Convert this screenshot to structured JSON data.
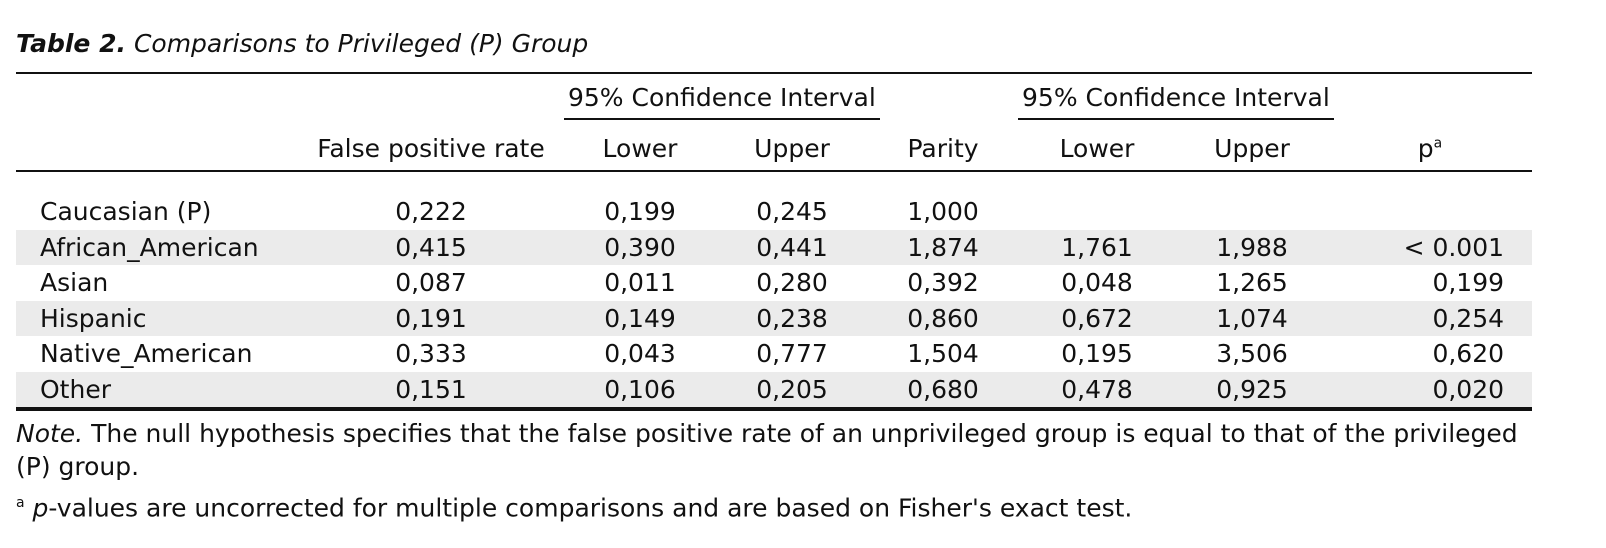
{
  "caption": {
    "label": "Table 2.",
    "title": "Comparisons to Privileged (P) Group"
  },
  "header": {
    "ci_label_1": "95% Confidence Interval",
    "ci_label_2": "95% Confidence Interval",
    "columns": [
      "False positive rate",
      "Lower",
      "Upper",
      "Parity",
      "Lower",
      "Upper",
      "p"
    ],
    "p_superscript": "a"
  },
  "rows": [
    {
      "group": "Caucasian (P)",
      "fpr": "0,222",
      "lower1": "0,199",
      "upper1": "0,245",
      "parity": "1,000",
      "lower2": "",
      "upper2": "",
      "p": ""
    },
    {
      "group": "African_American",
      "fpr": "0,415",
      "lower1": "0,390",
      "upper1": "0,441",
      "parity": "1,874",
      "lower2": "1,761",
      "upper2": "1,988",
      "p": "< 0.001"
    },
    {
      "group": "Asian",
      "fpr": "0,087",
      "lower1": "0,011",
      "upper1": "0,280",
      "parity": "0,392",
      "lower2": "0,048",
      "upper2": "1,265",
      "p": "0,199"
    },
    {
      "group": "Hispanic",
      "fpr": "0,191",
      "lower1": "0,149",
      "upper1": "0,238",
      "parity": "0,860",
      "lower2": "0,672",
      "upper2": "1,074",
      "p": "0,254"
    },
    {
      "group": "Native_American",
      "fpr": "0,333",
      "lower1": "0,043",
      "upper1": "0,777",
      "parity": "1,504",
      "lower2": "0,195",
      "upper2": "3,506",
      "p": "0,620"
    },
    {
      "group": "Other",
      "fpr": "0,151",
      "lower1": "0,106",
      "upper1": "0,205",
      "parity": "0,680",
      "lower2": "0,478",
      "upper2": "0,925",
      "p": "0,020"
    }
  ],
  "note": {
    "label": "Note.",
    "text": "The null hypothesis specifies that the false positive rate of an unprivileged group is equal to that of the privileged (P) group."
  },
  "footnote": {
    "marker": "a",
    "p_italic": "p",
    "text": "-values are uncorrected for multiple comparisons and are based on Fisher's exact test."
  }
}
